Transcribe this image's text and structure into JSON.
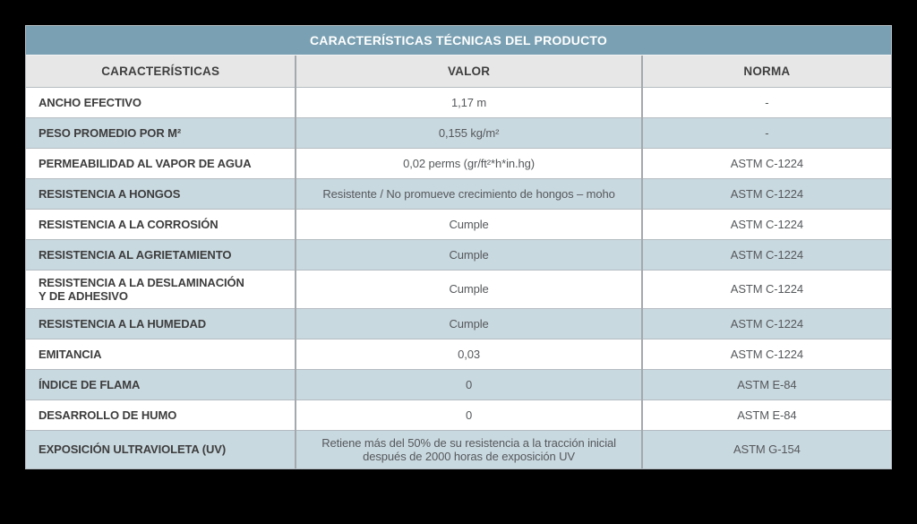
{
  "table": {
    "title": "CARACTERÍSTICAS TÉCNICAS DEL PRODUCTO",
    "columns": [
      "CARACTERÍSTICAS",
      "VALOR",
      "NORMA"
    ],
    "rows": [
      {
        "caracteristica": "ANCHO EFECTIVO",
        "valor": "1,17 m",
        "norma": "-"
      },
      {
        "caracteristica": "PESO PROMEDIO POR M²",
        "valor": "0,155 kg/m²",
        "norma": "-"
      },
      {
        "caracteristica": "PERMEABILIDAD AL VAPOR DE AGUA",
        "valor": "0,02 perms (gr/ft²*h*in.hg)",
        "norma": "ASTM C-1224"
      },
      {
        "caracteristica": "RESISTENCIA A HONGOS",
        "valor": "Resistente / No promueve crecimiento de hongos – moho",
        "norma": "ASTM C-1224"
      },
      {
        "caracteristica": "RESISTENCIA A LA CORROSIÓN",
        "valor": "Cumple",
        "norma": "ASTM C-1224"
      },
      {
        "caracteristica": "RESISTENCIA AL AGRIETAMIENTO",
        "valor": "Cumple",
        "norma": "ASTM C-1224"
      },
      {
        "caracteristica": "RESISTENCIA A LA DESLAMINACIÓN\nY DE ADHESIVO",
        "valor": "Cumple",
        "norma": "ASTM C-1224"
      },
      {
        "caracteristica": "RESISTENCIA A LA HUMEDAD",
        "valor": "Cumple",
        "norma": "ASTM C-1224"
      },
      {
        "caracteristica": "EMITANCIA",
        "valor": "0,03",
        "norma": "ASTM C-1224"
      },
      {
        "caracteristica": "ÍNDICE DE FLAMA",
        "valor": "0",
        "norma": "ASTM E-84"
      },
      {
        "caracteristica": "DESARROLLO DE HUMO",
        "valor": "0",
        "norma": "ASTM E-84"
      },
      {
        "caracteristica": "EXPOSICIÓN ULTRAVIOLETA (UV)",
        "valor": "Retiene más del 50% de su resistencia a la tracción inicial\ndespués de 2000 horas de exposición UV",
        "norma": "ASTM G-154"
      }
    ],
    "colors": {
      "title_bar": "#7aa1b3",
      "header_row": "#e7e7e7",
      "alt_row": "#c9d9e0",
      "outer_background": "#000000"
    }
  }
}
